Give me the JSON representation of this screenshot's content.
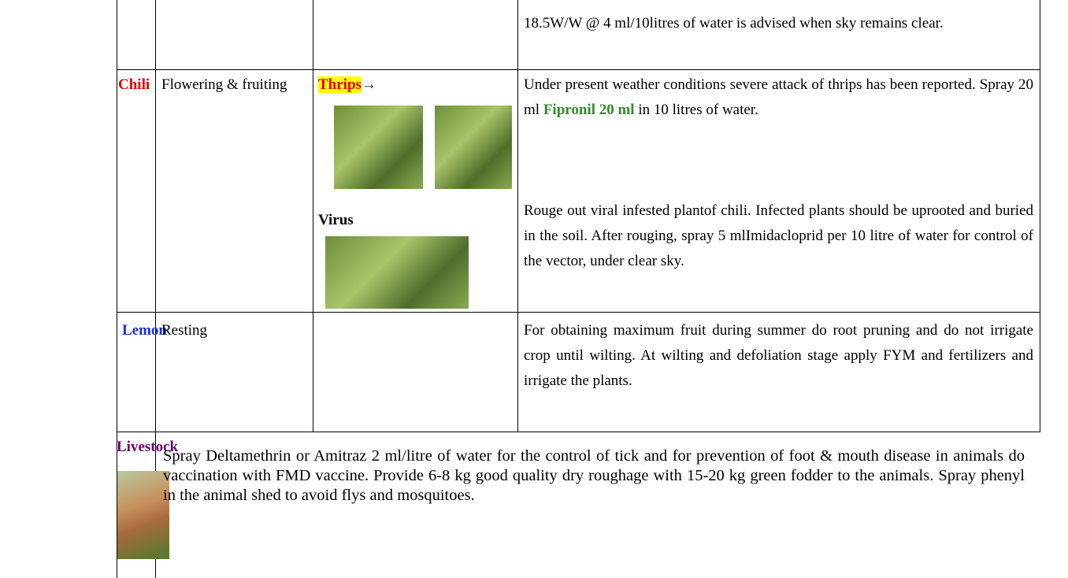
{
  "table": {
    "rows": [
      {
        "advice": "18.5W/W @ 4 ml/10litres of water is advised when sky remains clear."
      },
      {
        "crop": "Chili",
        "stage": "Flowering & fruiting",
        "pest_1": "Thrips",
        "pest_1_arrow": "→",
        "pest_2": "Virus",
        "advice_1": [
          "Under present weather conditions severe attack of thrips has been reported. Spray 20 ml",
          "Fipronil 20 ml",
          "in 10 litres of water."
        ],
        "advice_2": "Rouge out viral infested plantof chili. Infected plants should be uprooted and buried in the soil. After rouging, spray 5 mlImidacloprid per 10 litre of water for control of the vector, under clear sky."
      },
      {
        "crop": "Lemon",
        "stage": "Resting",
        "advice": "For obtaining maximum fruit during summer do root pruning and do not irrigate crop until wilting. At wilting and defoliation stage apply FYM and fertilizers and irrigate the plants."
      },
      {
        "crop": "Livestock",
        "advice": "Spray Deltamethrin or Amitraz 2 ml/litre of water for the control of tick and for prevention of foot & mouth disease in animals do vaccination with  FMD vaccine. Provide 6-8 kg good quality dry roughage with 15-20 kg green fodder to the animals. Spray phenyl in the animal shed to avoid flys and mosquitoes."
      }
    ]
  }
}
